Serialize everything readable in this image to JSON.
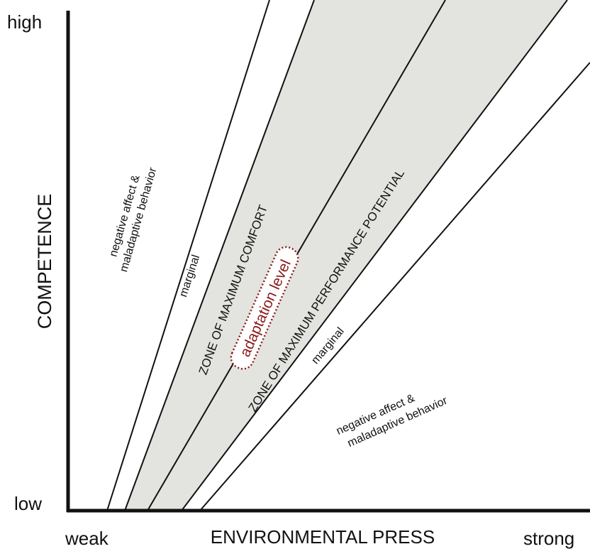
{
  "axes": {
    "y_high": "high",
    "y_low": "low",
    "y_title": "COMPETENCE",
    "x_weak": "weak",
    "x_title": "ENVIRONMENTAL PRESS",
    "x_strong": "strong"
  },
  "regions": {
    "upper_left_line1": "negative affect &",
    "upper_left_line2": "maladaptive behavior",
    "marginal_upper": "marginal",
    "comfort_zone": "ZONE OF MAXIMUM COMFORT",
    "adaptation_level": "adaptation level",
    "performance_zone": "ZONE OF MAXIMUM PERFORMANCE POTENTIAL",
    "marginal_lower": "marginal",
    "lower_right_line1": "negative affect &",
    "lower_right_line2": "maladaptive behavior"
  },
  "colors": {
    "zone_fill": "#e3e3df",
    "line": "#111111",
    "adaptation": "#8b1a1a"
  }
}
